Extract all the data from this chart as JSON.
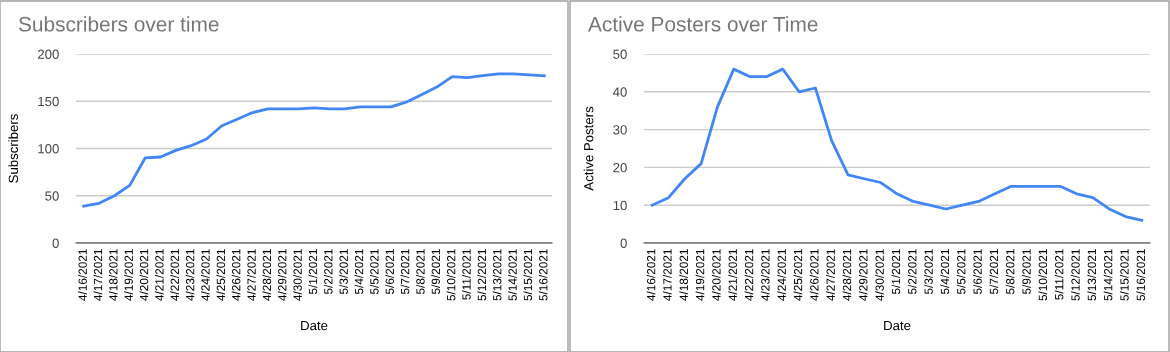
{
  "chart_data": [
    {
      "type": "line",
      "title": "Subscribers over time",
      "xlabel": "Date",
      "ylabel": "Subscribers",
      "categories": [
        "4/16/2021",
        "4/17/2021",
        "4/18/2021",
        "4/19/2021",
        "4/20/2021",
        "4/21/2021",
        "4/22/2021",
        "4/23/2021",
        "4/24/2021",
        "4/25/2021",
        "4/26/2021",
        "4/27/2021",
        "4/28/2021",
        "4/29/2021",
        "4/30/2021",
        "5/1/2021",
        "5/2/2021",
        "5/3/2021",
        "5/4/2021",
        "5/5/2021",
        "5/6/2021",
        "5/7/2021",
        "5/8/2021",
        "5/9/2021",
        "5/10/2021",
        "5/11/2021",
        "5/12/2021",
        "5/13/2021",
        "5/14/2021",
        "5/15/2021",
        "5/16/2021"
      ],
      "series": [
        {
          "color": "#4285f4",
          "values": [
            39,
            42,
            50,
            61,
            90,
            91,
            98,
            103,
            110,
            124,
            131,
            138,
            142,
            142,
            142,
            143,
            142,
            142,
            144,
            144,
            144,
            149,
            157,
            165,
            176,
            175,
            177,
            179,
            179,
            178,
            177
          ]
        }
      ],
      "ylim": [
        0,
        200
      ],
      "yticks": [
        0,
        50,
        100,
        150,
        200
      ],
      "grid": "y",
      "marker": "none",
      "line_style": "solid"
    },
    {
      "type": "line",
      "title": "Active Posters over Time",
      "xlabel": "Date",
      "ylabel": "Active Posters",
      "categories": [
        "4/16/2021",
        "4/17/2021",
        "4/18/2021",
        "4/19/2021",
        "4/20/2021",
        "4/21/2021",
        "4/22/2021",
        "4/23/2021",
        "4/24/2021",
        "4/25/2021",
        "4/26/2021",
        "4/27/2021",
        "4/28/2021",
        "4/29/2021",
        "4/30/2021",
        "5/1/2021",
        "5/2/2021",
        "5/3/2021",
        "5/4/2021",
        "5/5/2021",
        "5/6/2021",
        "5/7/2021",
        "5/8/2021",
        "5/9/2021",
        "5/10/2021",
        "5/11/2021",
        "5/12/2021",
        "5/13/2021",
        "5/14/2021",
        "5/15/2021",
        "5/16/2021"
      ],
      "series": [
        {
          "color": "#4285f4",
          "values": [
            10,
            12,
            17,
            21,
            36,
            46,
            44,
            44,
            46,
            40,
            41,
            27,
            18,
            17,
            16,
            13,
            11,
            10,
            9,
            10,
            11,
            13,
            15,
            15,
            15,
            15,
            13,
            12,
            9,
            7,
            6
          ]
        }
      ],
      "ylim": [
        0,
        50
      ],
      "yticks": [
        0,
        10,
        20,
        30,
        40,
        50
      ],
      "grid": "y",
      "marker": "none",
      "line_style": "solid"
    }
  ]
}
